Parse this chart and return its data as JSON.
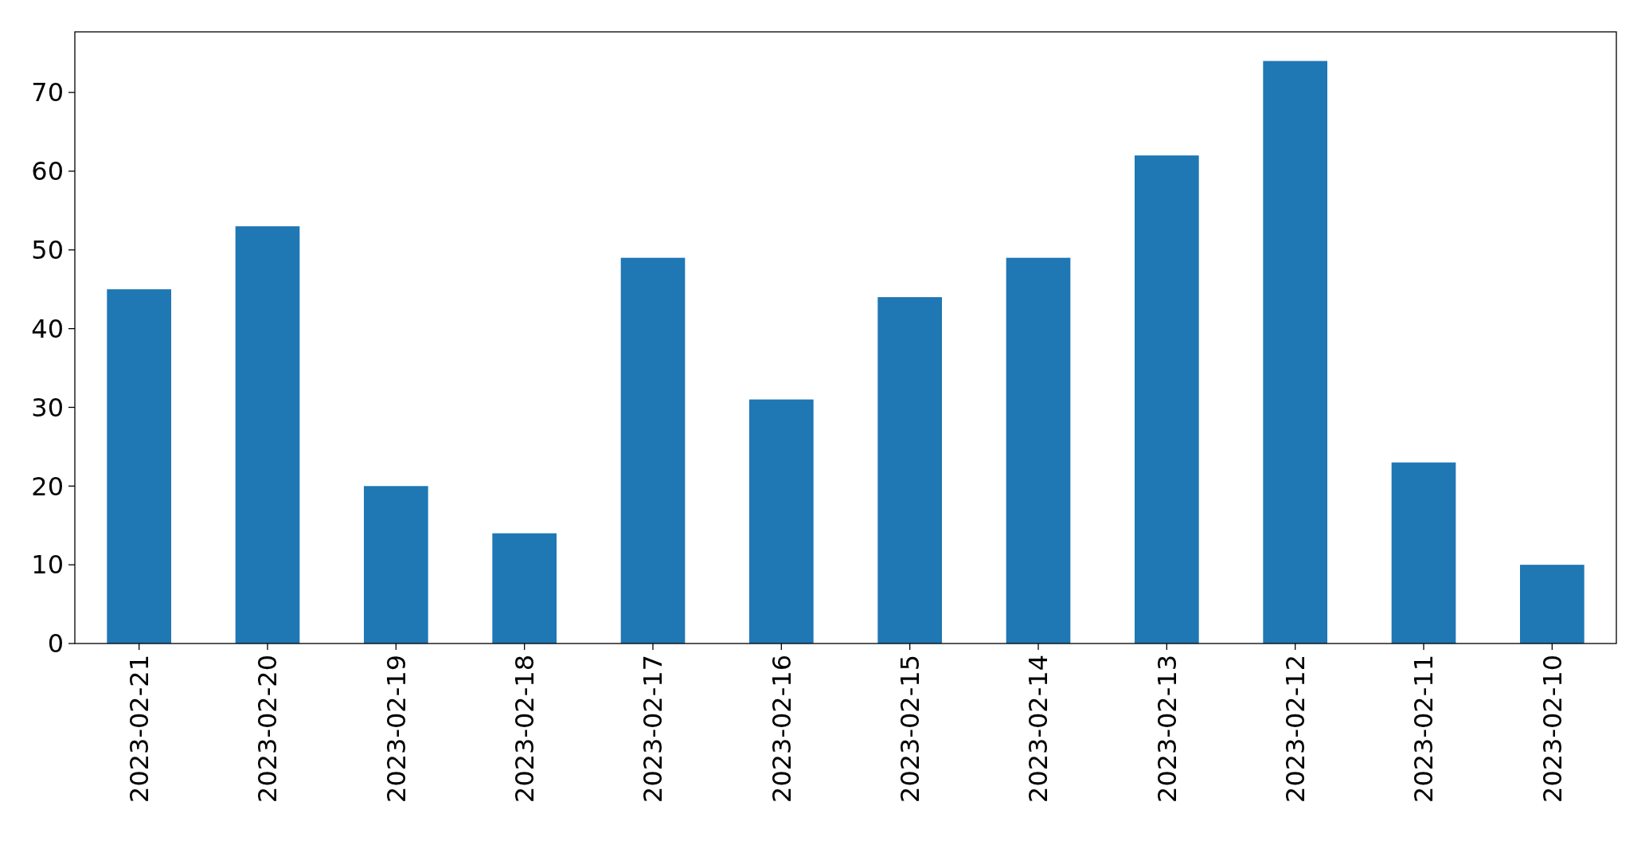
{
  "chart_data": {
    "type": "bar",
    "categories": [
      "2023-02-21",
      "2023-02-20",
      "2023-02-19",
      "2023-02-18",
      "2023-02-17",
      "2023-02-16",
      "2023-02-15",
      "2023-02-14",
      "2023-02-13",
      "2023-02-12",
      "2023-02-11",
      "2023-02-10"
    ],
    "values": [
      45,
      53,
      20,
      14,
      49,
      31,
      44,
      49,
      62,
      74,
      23,
      10
    ],
    "color": "#1f77b4",
    "ylim": [
      0,
      77.7
    ],
    "yticks": [
      0,
      10,
      20,
      30,
      40,
      50,
      60,
      70
    ]
  }
}
